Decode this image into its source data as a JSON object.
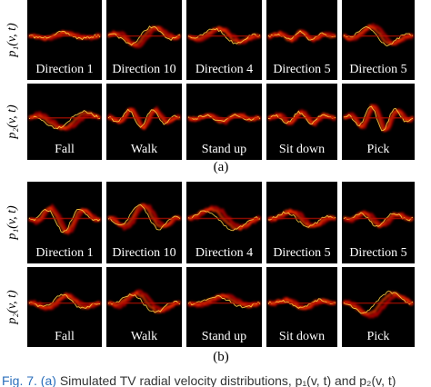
{
  "panels": [
    {
      "label": "(a)",
      "rows": [
        {
          "ylabel": "p₁(v, t)",
          "cells": [
            "Direction 1",
            "Direction 10",
            "Direction 4",
            "Direction 5",
            "Direction 5"
          ]
        },
        {
          "ylabel": "p₂(v, t)",
          "cells": [
            "Fall",
            "Walk",
            "Stand up",
            "Sit down",
            "Pick"
          ]
        }
      ]
    },
    {
      "label": "(b)",
      "rows": [
        {
          "ylabel": "p₁(v, t)",
          "cells": [
            "Direction 1",
            "Direction 10",
            "Direction 4",
            "Direction 5",
            "Direction 5"
          ]
        },
        {
          "ylabel": "p₂(v, t)",
          "cells": [
            "Fall",
            "Walk",
            "Stand up",
            "Sit down",
            "Pick"
          ]
        }
      ]
    }
  ],
  "caption": {
    "fig_label": "Fig. 7.",
    "sub_label": "(a)",
    "text": "Simulated TV radial velocity distributions, p₁(v, t) and p₂(v, t)"
  }
}
